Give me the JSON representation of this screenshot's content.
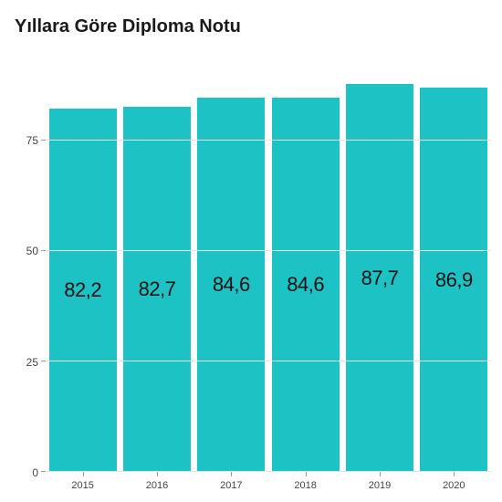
{
  "chart": {
    "type": "bar",
    "title": "Yıllara Göre Diploma Notu",
    "title_fontsize": 20,
    "categories": [
      "2015",
      "2016",
      "2017",
      "2018",
      "2019",
      "2020"
    ],
    "values": [
      82.2,
      82.7,
      84.6,
      84.6,
      87.7,
      86.9
    ],
    "value_labels": [
      "82,2",
      "82,7",
      "84,6",
      "84,6",
      "87,7",
      "86,9"
    ],
    "bar_color": "#1cc2c4",
    "ylim": [
      0,
      95
    ],
    "yticks": [
      0,
      25,
      50,
      75
    ],
    "ytick_labels": [
      "0",
      "25",
      "50",
      "75"
    ],
    "background_color": "#ffffff",
    "grid_color": "#e6e6e6",
    "bar_label_fontsize": 22,
    "axis_label_fontsize": 11,
    "bar_width": 0.96
  }
}
